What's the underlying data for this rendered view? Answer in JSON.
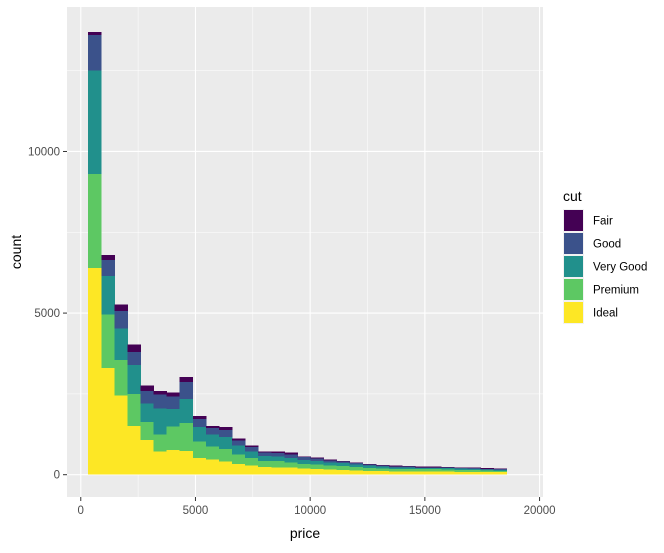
{
  "chart_data": {
    "type": "bar",
    "stacked": true,
    "title": "",
    "xlabel": "price",
    "ylabel": "count",
    "xlim": [
      -600,
      20150
    ],
    "ylim": [
      -690,
      14470
    ],
    "x_ticks": [
      0,
      5000,
      10000,
      15000,
      20000
    ],
    "y_ticks": [
      0,
      5000,
      10000
    ],
    "bin_width": 570,
    "bin_start": 325,
    "legend": {
      "title": "cut",
      "position": "right",
      "entries": [
        {
          "name": "Fair",
          "color": "#440154"
        },
        {
          "name": "Good",
          "color": "#3b528b"
        },
        {
          "name": "Very Good",
          "color": "#21908c"
        },
        {
          "name": "Premium",
          "color": "#5dc863"
        },
        {
          "name": "Ideal",
          "color": "#fde725"
        }
      ]
    },
    "x": [
      610,
      1180,
      1750,
      2320,
      2890,
      3460,
      4030,
      4600,
      5170,
      5740,
      6310,
      6880,
      7450,
      8020,
      8590,
      9160,
      9730,
      10300,
      10870,
      11440,
      12010,
      12580,
      13150,
      13720,
      14290,
      14860,
      15430,
      16000,
      16570,
      17140,
      17710,
      18280
    ],
    "series": [
      {
        "name": "Ideal",
        "values": [
          6400,
          3300,
          2450,
          1500,
          1080,
          720,
          760,
          740,
          520,
          470,
          410,
          330,
          290,
          240,
          230,
          220,
          190,
          170,
          160,
          150,
          130,
          120,
          110,
          100,
          100,
          100,
          100,
          100,
          90,
          90,
          80,
          80
        ]
      },
      {
        "name": "Premium",
        "values": [
          2900,
          1650,
          1100,
          1000,
          550,
          530,
          730,
          860,
          500,
          410,
          390,
          300,
          230,
          180,
          190,
          160,
          140,
          140,
          120,
          120,
          110,
          90,
          80,
          80,
          80,
          70,
          70,
          60,
          60,
          60,
          50,
          40
        ]
      },
      {
        "name": "Very Good",
        "values": [
          3200,
          1200,
          980,
          900,
          580,
          800,
          550,
          740,
          450,
          360,
          360,
          270,
          200,
          160,
          150,
          140,
          120,
          110,
          100,
          90,
          80,
          70,
          60,
          50,
          50,
          40,
          40,
          40,
          40,
          30,
          30,
          30
        ]
      },
      {
        "name": "Good",
        "values": [
          1100,
          500,
          530,
          400,
          380,
          430,
          380,
          530,
          250,
          200,
          230,
          160,
          140,
          100,
          100,
          110,
          90,
          80,
          60,
          50,
          40,
          30,
          30,
          30,
          20,
          20,
          20,
          20,
          20,
          20,
          20,
          20
        ]
      },
      {
        "name": "Fair",
        "values": [
          100,
          150,
          200,
          230,
          170,
          110,
          120,
          160,
          90,
          70,
          90,
          60,
          50,
          40,
          40,
          50,
          30,
          30,
          30,
          20,
          20,
          20,
          20,
          20,
          20,
          20,
          20,
          20,
          20,
          20,
          20,
          20
        ]
      }
    ]
  }
}
